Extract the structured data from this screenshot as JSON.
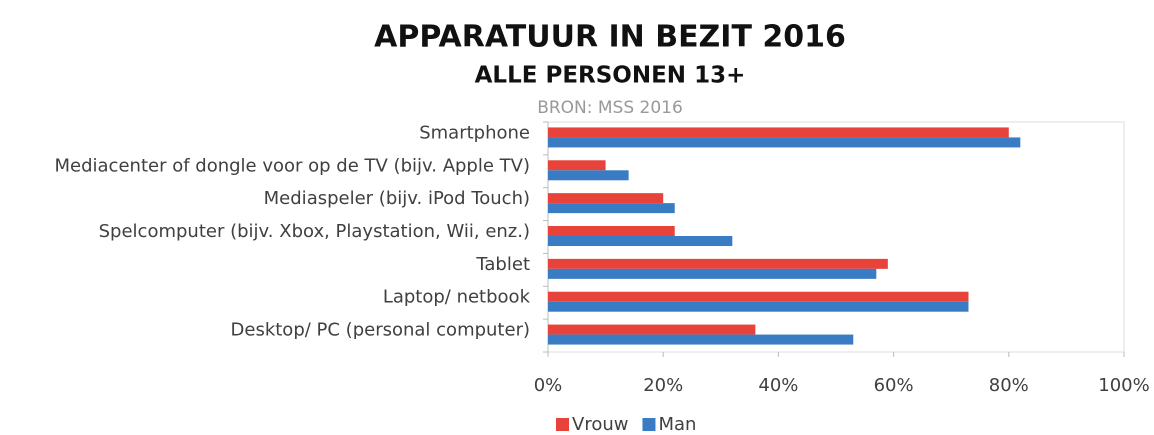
{
  "chart_data": {
    "type": "bar",
    "orientation": "horizontal",
    "title": "APPARATUUR IN BEZIT 2016",
    "subtitle": "ALLE PERSONEN 13+",
    "source": "BRON: MSS 2016",
    "categories": [
      "Smartphone",
      "Mediacenter of dongle voor op de TV (bijv. Apple TV)",
      "Mediaspeler (bijv. iPod Touch)",
      "Spelcomputer (bijv. Xbox, Playstation, Wii, enz.)",
      "Tablet",
      "Laptop/ netbook",
      "Desktop/ PC (personal computer)"
    ],
    "series": [
      {
        "name": "Vrouw",
        "color": "#e8433a",
        "values": [
          80,
          10,
          20,
          22,
          59,
          73,
          36
        ]
      },
      {
        "name": "Man",
        "color": "#3a7cc4",
        "values": [
          82,
          14,
          22,
          32,
          57,
          73,
          53
        ]
      }
    ],
    "xlim": [
      0,
      100
    ],
    "xticks": [
      {
        "value": 0,
        "label": "0%"
      },
      {
        "value": 20,
        "label": "20%"
      },
      {
        "value": 40,
        "label": "40%"
      },
      {
        "value": 60,
        "label": "60%"
      },
      {
        "value": 80,
        "label": "80%"
      },
      {
        "value": 100,
        "label": "100%"
      }
    ],
    "legend": "bottom"
  }
}
